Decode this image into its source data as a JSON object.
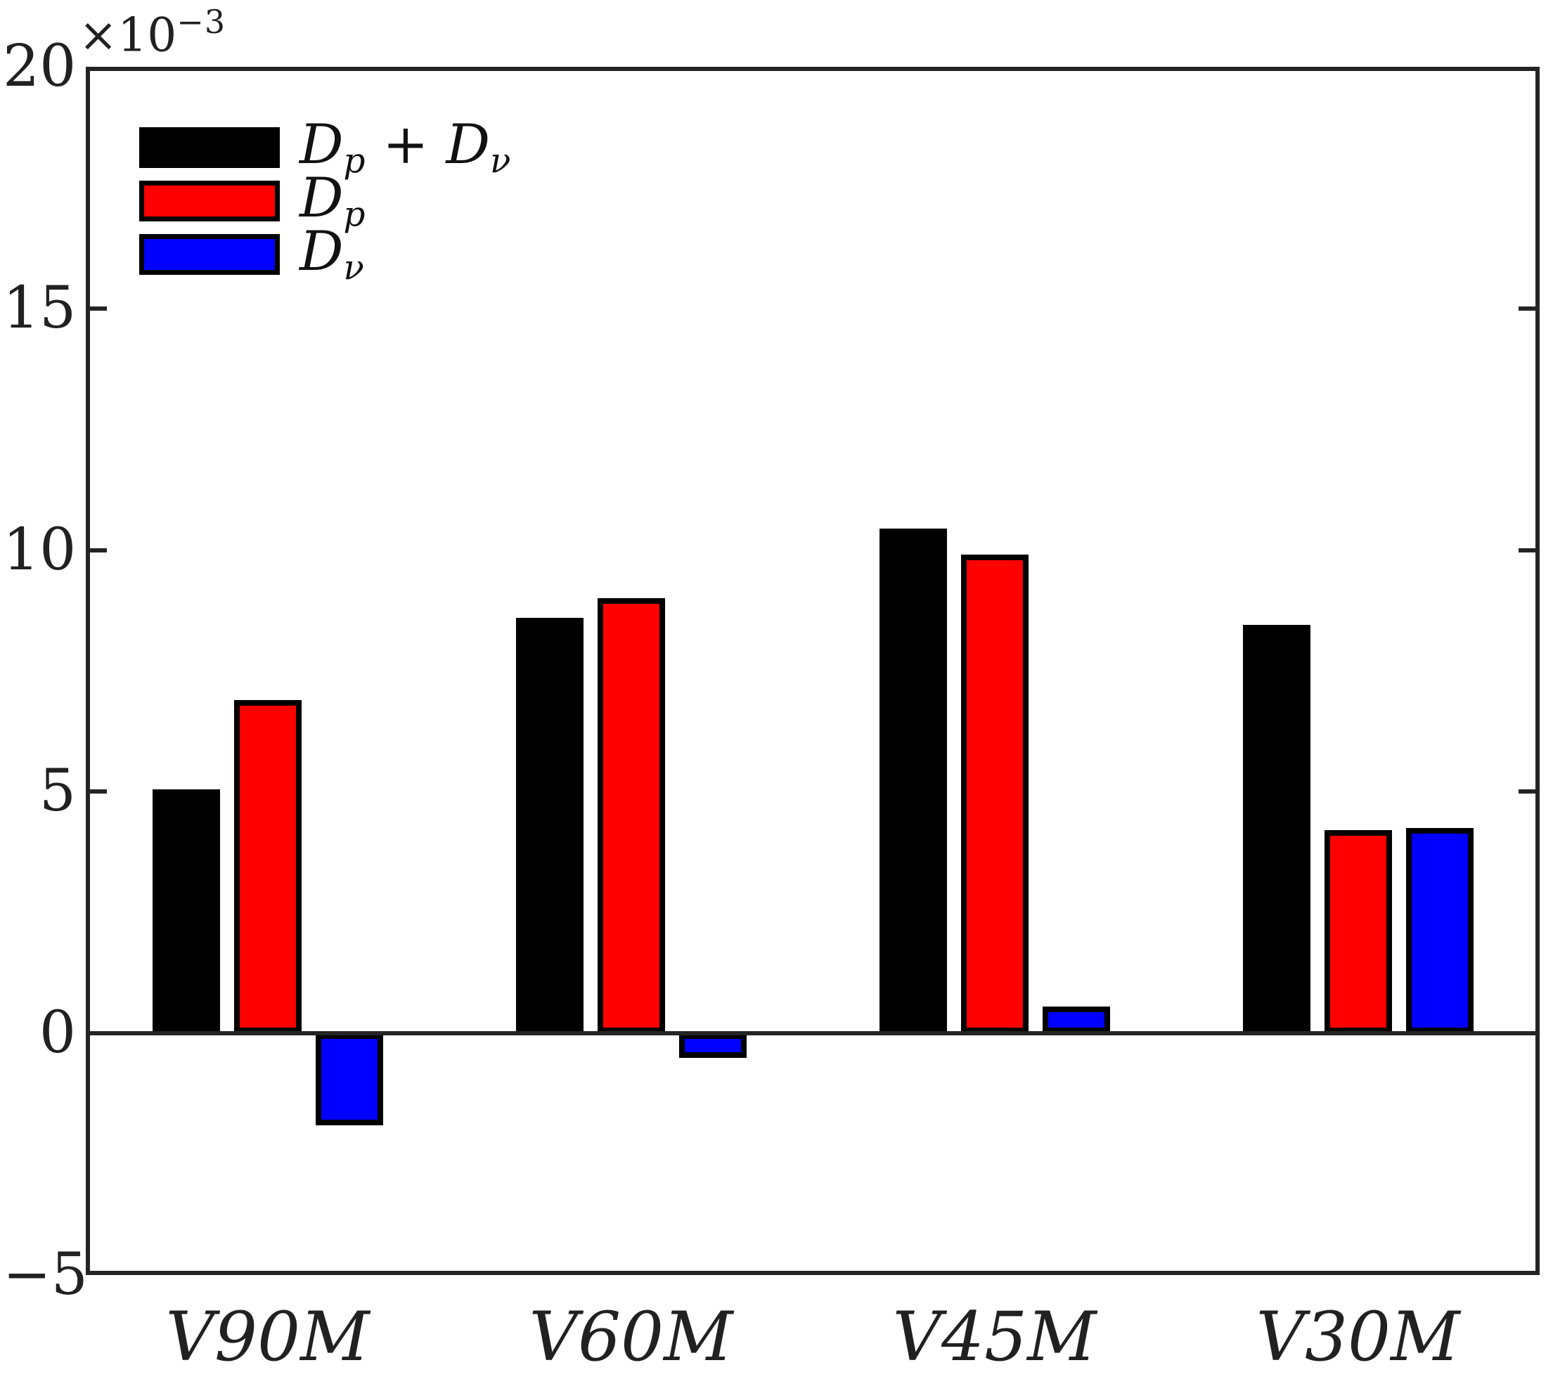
{
  "axis": {
    "multiplier_prefix": "×10",
    "multiplier_exp": "−3",
    "ytick_labels": [
      "20",
      "15",
      "10",
      "5",
      "0",
      "−5"
    ]
  },
  "legend": {
    "items": [
      {
        "name": "Dp + Dν",
        "parts": [
          "D",
          "p",
          " + ",
          "D",
          "ν"
        ]
      },
      {
        "name": "Dp",
        "parts": [
          "D",
          "p"
        ]
      },
      {
        "name": "Dν",
        "parts": [
          "D",
          "ν"
        ]
      }
    ]
  },
  "chart_data": {
    "type": "bar",
    "title": "",
    "xlabel": "",
    "ylabel": "",
    "y_multiplier": "×10⁻³",
    "categories": [
      "V90M",
      "V60M",
      "V45M",
      "V30M"
    ],
    "series": [
      {
        "name": "Dp + Dν",
        "slug": "dp-plus-dv",
        "color": "#000000",
        "values": [
          5.05,
          8.6,
          10.45,
          8.45
        ]
      },
      {
        "name": "Dp",
        "slug": "dp",
        "color": "#ff0000",
        "values": [
          6.9,
          9.0,
          9.9,
          4.2
        ]
      },
      {
        "name": "Dν",
        "slug": "dv",
        "color": "#0000ff",
        "values": [
          -1.9,
          -0.5,
          0.55,
          4.25
        ]
      }
    ],
    "ylim": [
      -5,
      20
    ],
    "yticks": [
      20,
      15,
      10,
      5,
      0,
      -5
    ],
    "grid": false,
    "legend_position": "top-left",
    "bar_edge_color": "#000000",
    "axis_color": "#242424"
  }
}
